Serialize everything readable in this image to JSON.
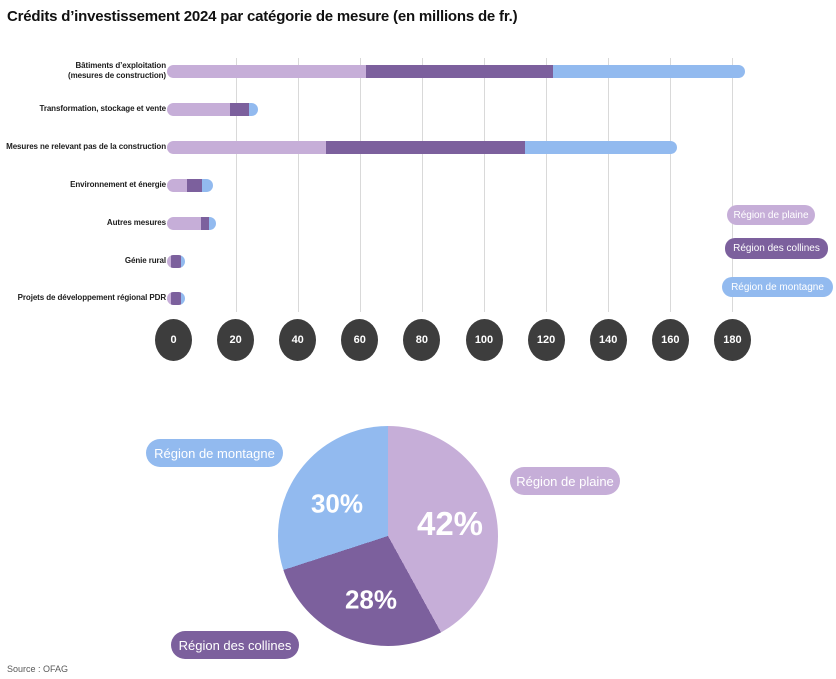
{
  "title": "Crédits d’investissement 2024 par catégorie de mesure (en millions de fr.)",
  "source": "Source : OFAG",
  "colors": {
    "plaine": "#c6aed8",
    "collines": "#7c609d",
    "montagne": "#92baef",
    "tick_circle": "#3d3d3d",
    "gridline": "#d9d9d9"
  },
  "chart_data": [
    {
      "type": "bar",
      "orientation": "horizontal",
      "stacked": true,
      "title": "Crédits d’investissement 2024 par catégorie de mesure (en millions de fr.)",
      "categories": [
        "Bâtiments d’exploitation (mesures de construction)",
        "Transformation, stockage et vente",
        "Mesures ne relevant pas de la construction",
        "Environnement et énergie",
        "Autres mesures",
        "Génie rural",
        "Projets de développement régional PDR"
      ],
      "category_lines": [
        [
          "Bâtiments d’exploitation",
          "(mesures de construction)"
        ],
        [
          "Transformation, stockage et vente"
        ],
        [
          "Mesures ne relevant pas de la construction"
        ],
        [
          "Environnement et énergie"
        ],
        [
          "Autres mesures"
        ],
        [
          "Génie rural"
        ],
        [
          "Projets de développement régional PDR"
        ]
      ],
      "series": [
        {
          "name": "Région de plaine",
          "color": "#c6aed8",
          "values": [
            62.5,
            17.5,
            50.0,
            4.5,
            8.0,
            0.3,
            0.3
          ]
        },
        {
          "name": "Région des collines",
          "color": "#7c609d",
          "values": [
            59.0,
            5.0,
            62.5,
            3.5,
            2.0,
            0.9,
            0.9
          ]
        },
        {
          "name": "Région de montagne",
          "color": "#92baef",
          "values": [
            60.5,
            2.5,
            47.5,
            2.5,
            1.5,
            0.3,
            0.3
          ]
        }
      ],
      "x_ticks": [
        0,
        20,
        40,
        60,
        80,
        100,
        120,
        140,
        160,
        180
      ],
      "xlim": [
        0,
        195
      ],
      "grid": "vertical",
      "legend_position": "right"
    },
    {
      "type": "pie",
      "start": "top",
      "direction": "clockwise",
      "slices": [
        {
          "label": "Région de plaine",
          "percent": 42,
          "percent_label": "42%",
          "color": "#c6aed8"
        },
        {
          "label": "Région des collines",
          "percent": 28,
          "percent_label": "28%",
          "color": "#7c609d"
        },
        {
          "label": "Région de montagne",
          "percent": 30,
          "percent_label": "30%",
          "color": "#92baef"
        }
      ]
    }
  ],
  "legend": {
    "items": [
      {
        "label": "Région de plaine"
      },
      {
        "label": "Région des collines"
      },
      {
        "label": "Région de montagne"
      }
    ]
  }
}
